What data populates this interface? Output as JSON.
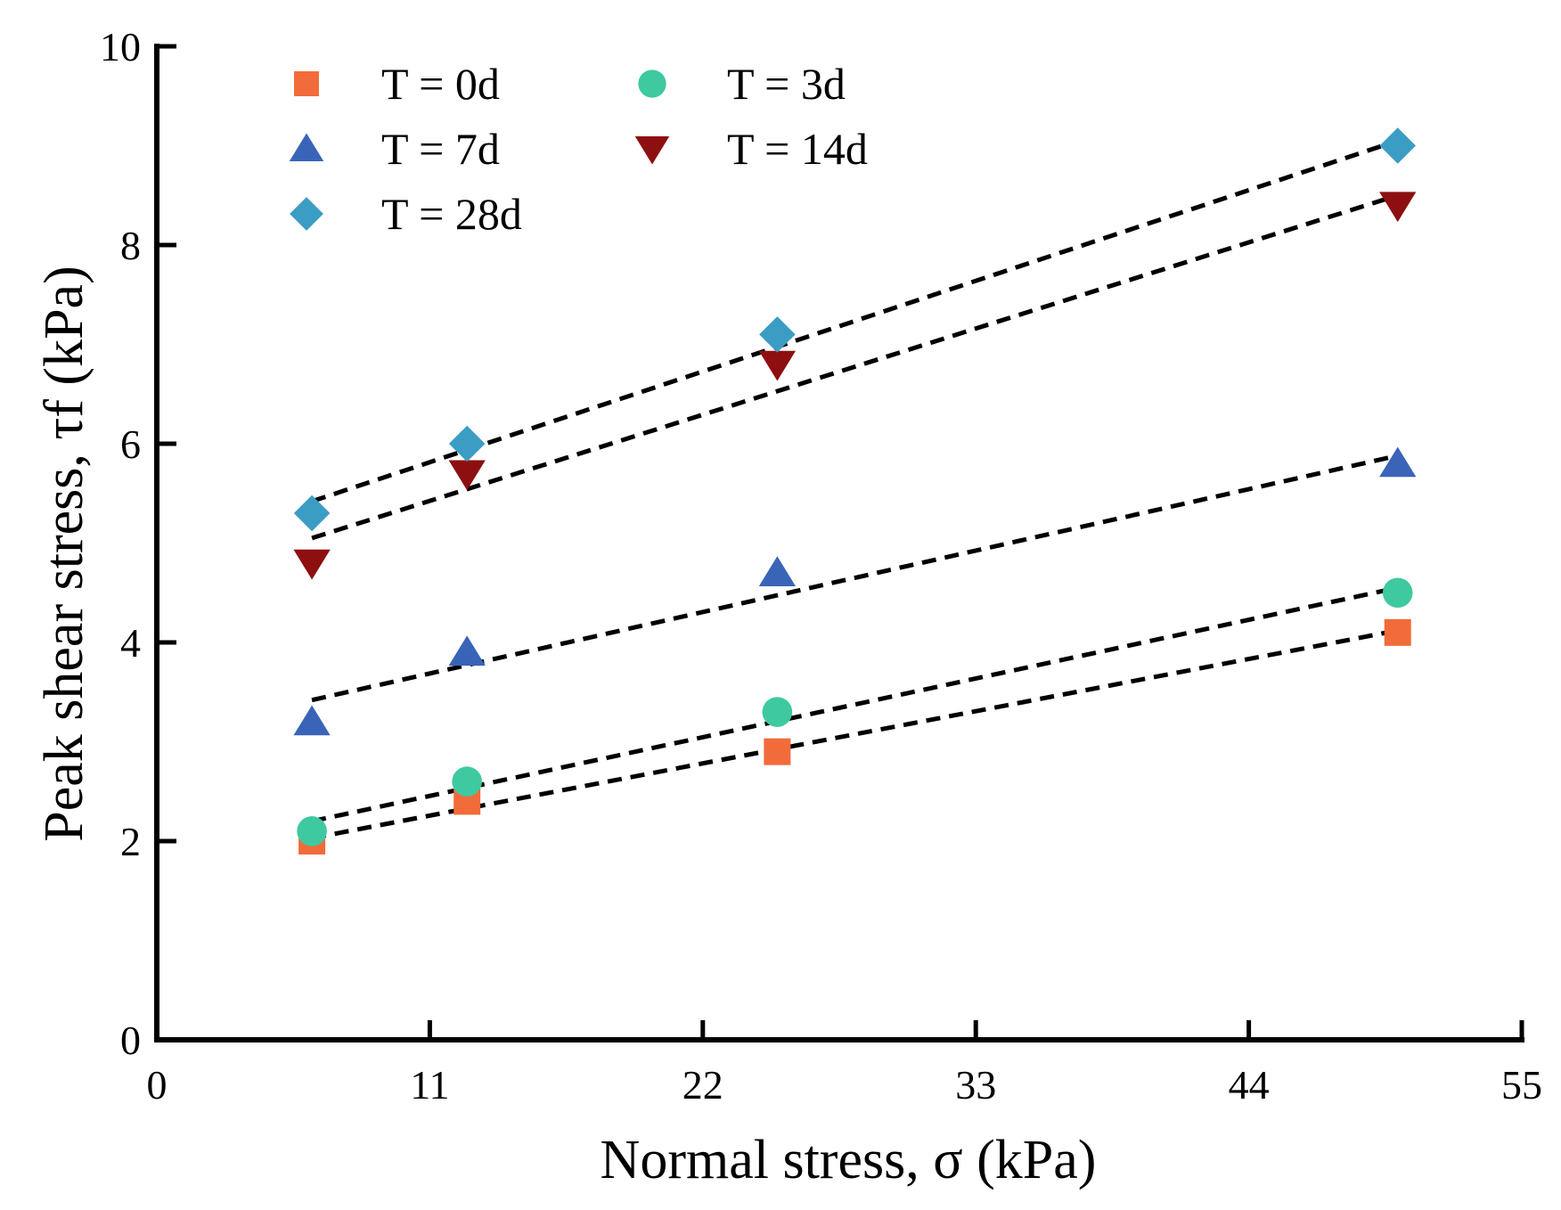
{
  "chart_data": {
    "type": "scatter",
    "xlabel": "Normal stress, σ (kPa)",
    "ylabel": "Peak shear stress, τf (kPa)",
    "xlim": [
      0,
      55
    ],
    "ylim": [
      0,
      10
    ],
    "xticks": [
      "0",
      "11",
      "22",
      "33",
      "44",
      "55"
    ],
    "yticks": [
      "0",
      "2",
      "4",
      "6",
      "8",
      "10"
    ],
    "grid": false,
    "legend": "top-left",
    "series": [
      {
        "name": "T = 0d",
        "marker": "square",
        "color": "#F26B3A",
        "x": [
          6.25,
          12.5,
          25,
          50
        ],
        "y": [
          2.0,
          2.4,
          2.9,
          4.1
        ],
        "fit": [
          [
            6.25,
            2.03
          ],
          [
            50,
            4.12
          ]
        ]
      },
      {
        "name": "T = 3d",
        "marker": "circle",
        "color": "#3FC9A0",
        "x": [
          6.25,
          12.5,
          25,
          50
        ],
        "y": [
          2.1,
          2.6,
          3.3,
          4.5
        ],
        "fit": [
          [
            6.25,
            2.2
          ],
          [
            50,
            4.55
          ]
        ]
      },
      {
        "name": "T = 7d",
        "marker": "triangle-up",
        "color": "#3A64B8",
        "x": [
          6.25,
          12.5,
          25,
          50
        ],
        "y": [
          3.2,
          3.9,
          4.7,
          5.8
        ],
        "fit": [
          [
            6.25,
            3.42
          ],
          [
            50,
            5.88
          ]
        ]
      },
      {
        "name": "T = 14d",
        "marker": "triangle-down",
        "color": "#8E0F10",
        "x": [
          6.25,
          12.5,
          25,
          50
        ],
        "y": [
          4.8,
          5.7,
          6.8,
          8.4
        ],
        "fit": [
          [
            6.25,
            5.05
          ],
          [
            50,
            8.5
          ]
        ]
      },
      {
        "name": "T = 28d",
        "marker": "diamond",
        "color": "#3B9DC4",
        "x": [
          6.25,
          12.5,
          25,
          50
        ],
        "y": [
          5.3,
          6.0,
          7.1,
          9.0
        ],
        "fit": [
          [
            6.25,
            5.42
          ],
          [
            50,
            9.05
          ]
        ]
      }
    ]
  }
}
